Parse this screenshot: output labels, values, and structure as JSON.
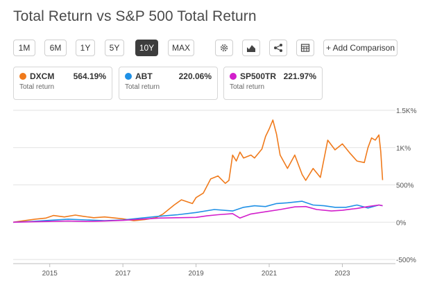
{
  "title": "Total Return vs S&P 500 Total Return",
  "ranges": [
    "1M",
    "6M",
    "1Y",
    "5Y",
    "10Y",
    "MAX"
  ],
  "active_range": "10Y",
  "tools": {
    "settings_icon": "gear-icon",
    "chart_type_icon": "mountain-chart-icon",
    "share_icon": "share-icon",
    "table_icon": "table-icon",
    "add_comparison_label": "+ Add Comparison"
  },
  "cards": [
    {
      "ticker": "DXCM",
      "value": "564.19%",
      "sub": "Total return",
      "color": "#f07a1b"
    },
    {
      "ticker": "ABT",
      "value": "220.06%",
      "sub": "Total return",
      "color": "#1e90e6"
    },
    {
      "ticker": "SP500TR",
      "value": "221.97%",
      "sub": "Total return",
      "color": "#d21ecb"
    }
  ],
  "chart_data": {
    "type": "line",
    "title": "",
    "xlabel": "",
    "ylabel": "",
    "x_ticks": [
      "2015",
      "2017",
      "2019",
      "2021",
      "2023"
    ],
    "x_tick_years": [
      2015,
      2017,
      2019,
      2021,
      2023
    ],
    "y_ticks": [
      1500,
      1000,
      500,
      0,
      -500
    ],
    "y_tick_labels": [
      "1.5K%",
      "1K%",
      "500%",
      "0%",
      "-500%"
    ],
    "ylim": [
      -500,
      1500
    ],
    "xlim": [
      2014.0,
      2024.3
    ],
    "grid": "horizontal",
    "series": [
      {
        "name": "DXCM",
        "color": "#f07a1b",
        "x": [
          2014.0,
          2014.3,
          2014.6,
          2014.9,
          2015.1,
          2015.4,
          2015.7,
          2015.9,
          2016.2,
          2016.5,
          2016.8,
          2017.0,
          2017.3,
          2017.6,
          2017.9,
          2018.1,
          2018.4,
          2018.6,
          2018.9,
          2019.0,
          2019.2,
          2019.4,
          2019.6,
          2019.8,
          2019.9,
          2020.0,
          2020.1,
          2020.2,
          2020.3,
          2020.5,
          2020.6,
          2020.8,
          2020.9,
          2021.0,
          2021.1,
          2021.2,
          2021.3,
          2021.5,
          2021.7,
          2021.9,
          2022.0,
          2022.2,
          2022.4,
          2022.6,
          2022.8,
          2023.0,
          2023.2,
          2023.4,
          2023.6,
          2023.7,
          2023.8,
          2023.9,
          2024.0,
          2024.05,
          2024.1
        ],
        "y": [
          0,
          20,
          40,
          55,
          90,
          70,
          95,
          80,
          60,
          70,
          55,
          45,
          20,
          35,
          60,
          110,
          230,
          300,
          250,
          330,
          390,
          580,
          620,
          520,
          560,
          900,
          820,
          940,
          860,
          900,
          860,
          980,
          1150,
          1250,
          1370,
          1180,
          900,
          720,
          900,
          640,
          560,
          720,
          600,
          1100,
          970,
          1050,
          930,
          820,
          800,
          1000,
          1130,
          1100,
          1170,
          950,
          564
        ]
      },
      {
        "name": "ABT",
        "color": "#1e90e6",
        "x": [
          2014.0,
          2014.5,
          2015.0,
          2015.5,
          2016.0,
          2016.5,
          2017.0,
          2017.5,
          2018.0,
          2018.5,
          2019.0,
          2019.5,
          2020.0,
          2020.3,
          2020.6,
          2020.9,
          2021.2,
          2021.5,
          2021.9,
          2022.2,
          2022.5,
          2022.8,
          2023.1,
          2023.4,
          2023.7,
          2024.0,
          2024.1
        ],
        "y": [
          0,
          10,
          25,
          40,
          30,
          20,
          30,
          55,
          80,
          100,
          130,
          170,
          150,
          200,
          220,
          210,
          250,
          260,
          280,
          230,
          220,
          200,
          200,
          230,
          190,
          230,
          220
        ]
      },
      {
        "name": "SP500TR",
        "color": "#d21ecb",
        "x": [
          2014.0,
          2014.5,
          2015.0,
          2015.5,
          2016.0,
          2016.5,
          2017.0,
          2017.5,
          2018.0,
          2018.5,
          2019.0,
          2019.3,
          2019.6,
          2020.0,
          2020.2,
          2020.5,
          2020.9,
          2021.3,
          2021.7,
          2022.0,
          2022.3,
          2022.7,
          2023.0,
          2023.4,
          2023.7,
          2024.0,
          2024.1
        ],
        "y": [
          0,
          5,
          10,
          15,
          10,
          15,
          25,
          40,
          55,
          60,
          65,
          85,
          100,
          115,
          55,
          110,
          140,
          170,
          205,
          210,
          170,
          150,
          160,
          185,
          210,
          230,
          222
        ]
      }
    ]
  }
}
